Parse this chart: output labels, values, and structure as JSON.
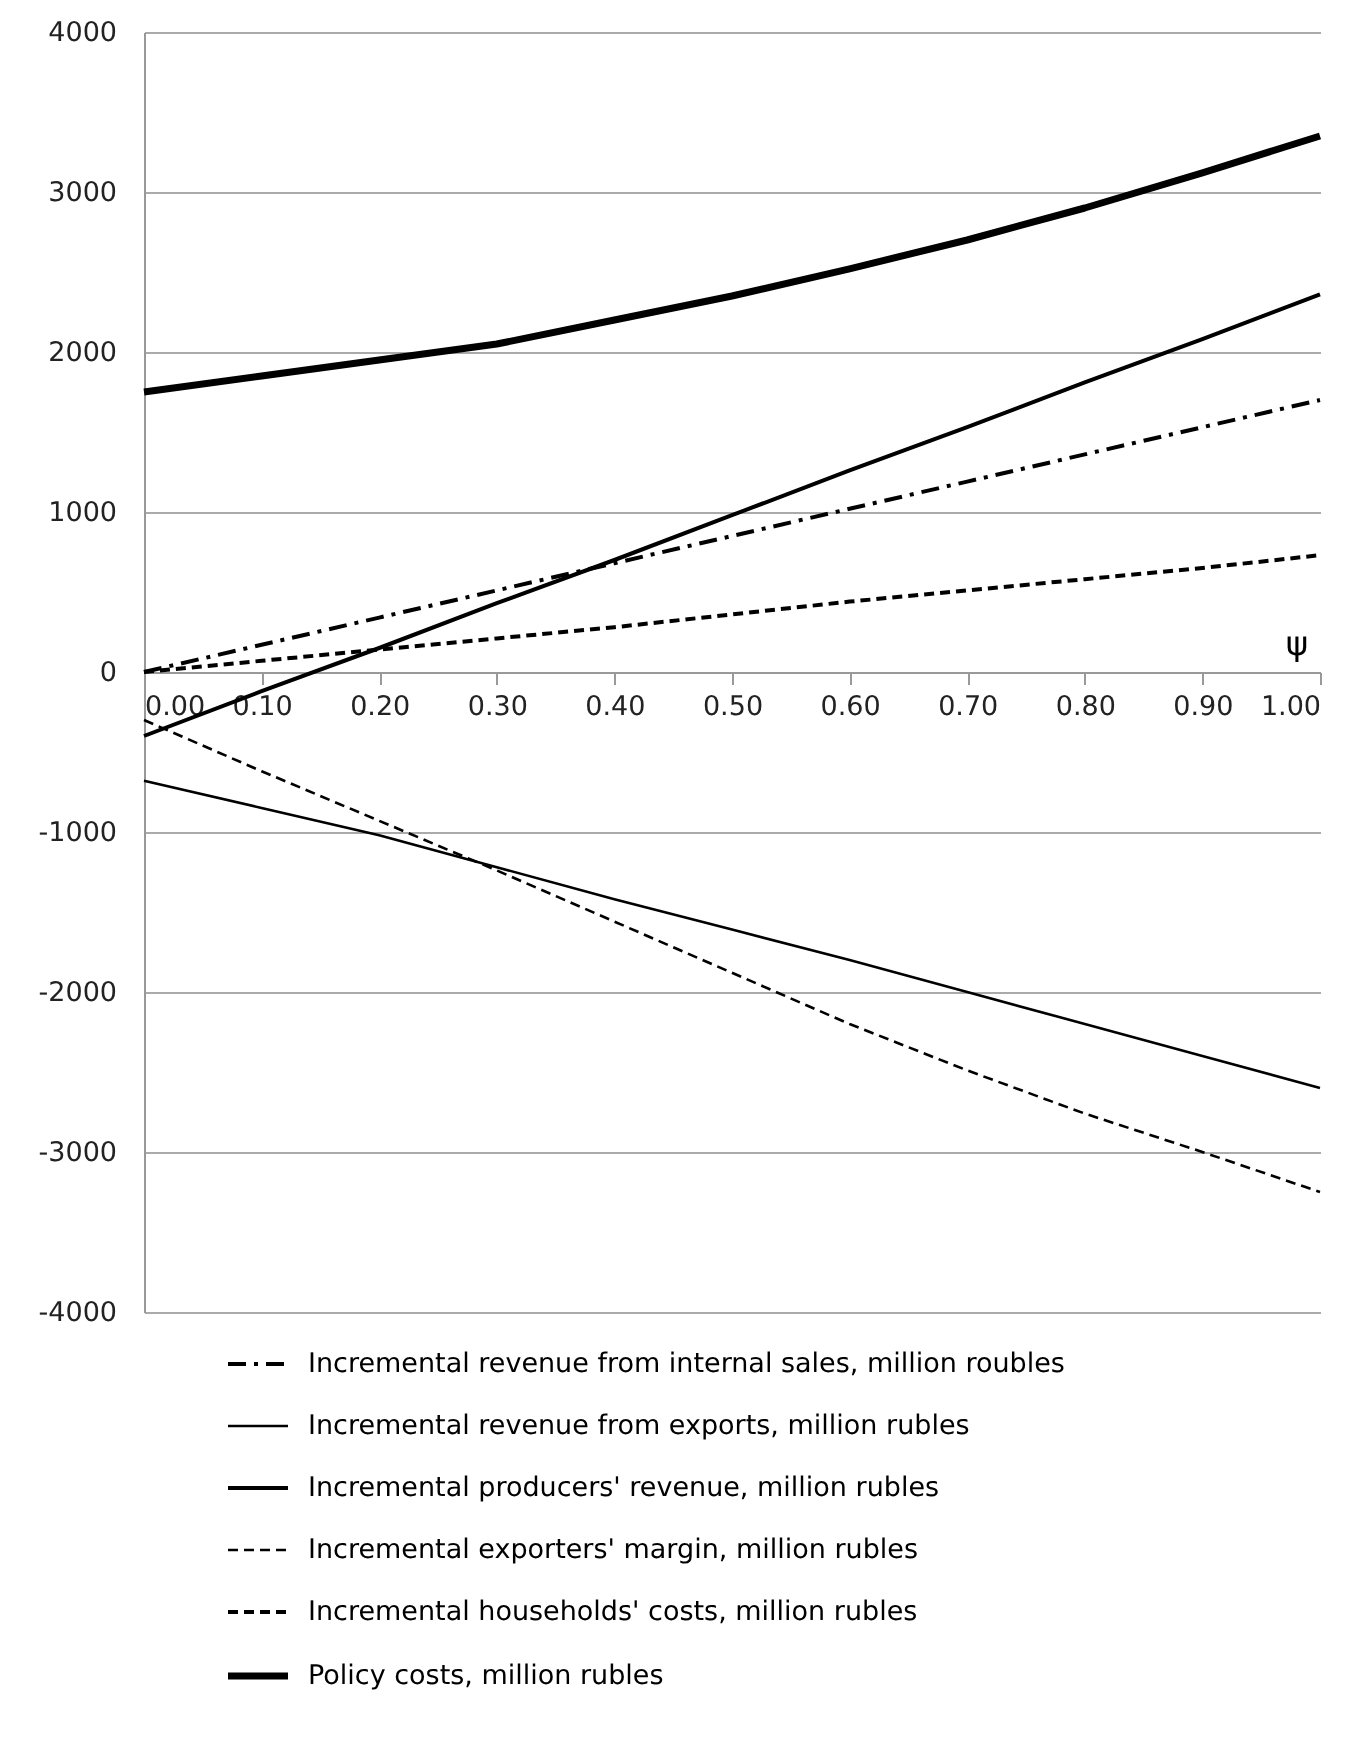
{
  "chart_data": {
    "type": "line",
    "xlabel": "ψ",
    "x": [
      0,
      0.1,
      0.2,
      0.3,
      0.4,
      0.5,
      0.6,
      0.7,
      0.8,
      0.9,
      1.0
    ],
    "series": [
      {
        "name": "Incremental revenue from internal sales, million roubles",
        "color": "#000000",
        "line_style": "dashdot",
        "values": [
          0,
          170,
          340,
          510,
          680,
          850,
          1020,
          1190,
          1360,
          1530,
          1700
        ]
      },
      {
        "name": "Incremental revenue from exports, million rubles",
        "color": "#000000",
        "line_style": "solid",
        "values": [
          -680,
          -850,
          -1020,
          -1220,
          -1420,
          -1610,
          -1800,
          -2000,
          -2200,
          -2400,
          -2600
        ]
      },
      {
        "name": "Incremental producers' revenue, million rubles",
        "color": "#000000",
        "line_style": "solid",
        "values": [
          -400,
          -120,
          150,
          430,
          700,
          980,
          1260,
          1530,
          1810,
          2080,
          2360
        ]
      },
      {
        "name": "Incremental exporters' margin, million rubles",
        "color": "#000000",
        "line_style": "dashed",
        "values": [
          -300,
          -620,
          -930,
          -1240,
          -1560,
          -1880,
          -2200,
          -2490,
          -2760,
          -3000,
          -3250
        ]
      },
      {
        "name": "Incremental households' costs, million rubles",
        "color": "#000000",
        "line_style": "dashed",
        "values": [
          0,
          70,
          140,
          210,
          280,
          360,
          440,
          510,
          580,
          650,
          730
        ]
      },
      {
        "name": "Policy costs, million rubles",
        "color": "#000000",
        "line_style": "solid",
        "values": [
          1750,
          1850,
          1950,
          2050,
          2200,
          2350,
          2520,
          2700,
          2900,
          3120,
          3350
        ]
      }
    ],
    "xlim": [
      0,
      1.0
    ],
    "xticks": [
      {
        "value": 0,
        "label": "0.00"
      },
      {
        "value": 0.1,
        "label": "0.10"
      },
      {
        "value": 0.2,
        "label": "0.20"
      },
      {
        "value": 0.3,
        "label": "0.30"
      },
      {
        "value": 0.4,
        "label": "0.40"
      },
      {
        "value": 0.5,
        "label": "0.50"
      },
      {
        "value": 0.6,
        "label": "0.60"
      },
      {
        "value": 0.7,
        "label": "0.70"
      },
      {
        "value": 0.8,
        "label": "0.80"
      },
      {
        "value": 0.9,
        "label": "0.90"
      },
      {
        "value": 1.0,
        "label": "1.00"
      }
    ],
    "ylim": [
      -4000,
      4000
    ],
    "yticks": [
      -4000,
      -3000,
      -2000,
      -1000,
      0,
      1000,
      2000,
      3000,
      4000
    ],
    "grid": "y",
    "legend": "bottom",
    "marker": "none"
  }
}
